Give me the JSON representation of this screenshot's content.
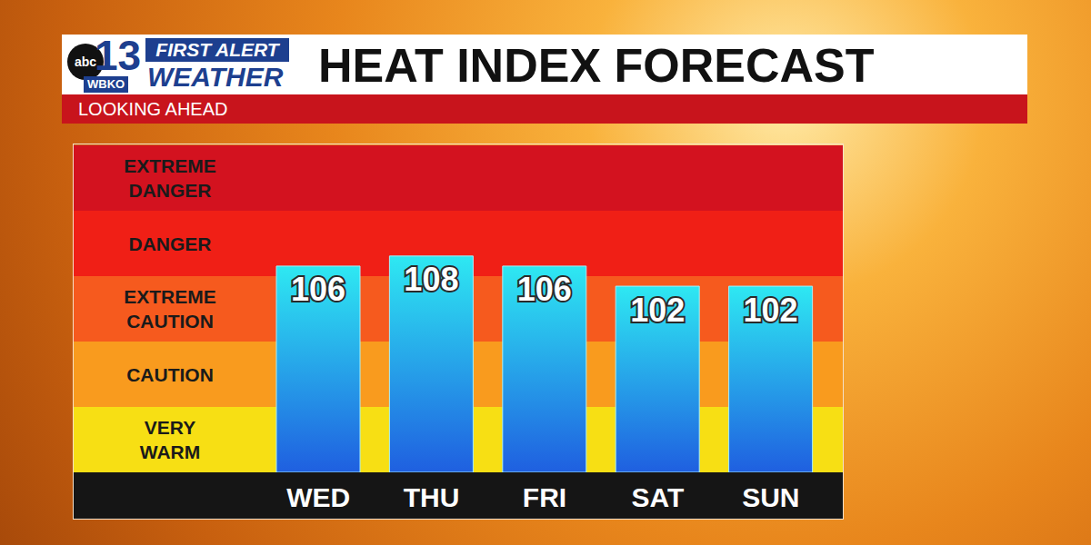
{
  "chart_data": {
    "type": "bar",
    "title": "HEAT INDEX FORECAST",
    "subtitle": "LOOKING AHEAD",
    "categories": [
      "WED",
      "THU",
      "FRI",
      "SAT",
      "SUN"
    ],
    "values": [
      106,
      108,
      106,
      102,
      102
    ],
    "color": "#1f5fe0",
    "ylim": [
      65,
      130
    ],
    "tick_labels": "x",
    "data_labels": true,
    "grid": false,
    "bands": [
      {
        "label": "VERY WARM",
        "from": 65,
        "to": 78,
        "color": "#f7df14"
      },
      {
        "label": "CAUTION",
        "from": 78,
        "to": 91,
        "color": "#f99b1e"
      },
      {
        "label": "EXTREME CAUTION",
        "from": 91,
        "to": 104,
        "color": "#f65a1e"
      },
      {
        "label": "DANGER",
        "from": 104,
        "to": 117,
        "color": "#f01f16"
      },
      {
        "label": "EXTREME DANGER",
        "from": 117,
        "to": 130,
        "color": "#d3121f"
      }
    ]
  },
  "logo": {
    "network": "abc",
    "channel": "13",
    "station": "WBKO",
    "brand": "FIRST ALERT",
    "brand_sub": "WEATHER"
  }
}
